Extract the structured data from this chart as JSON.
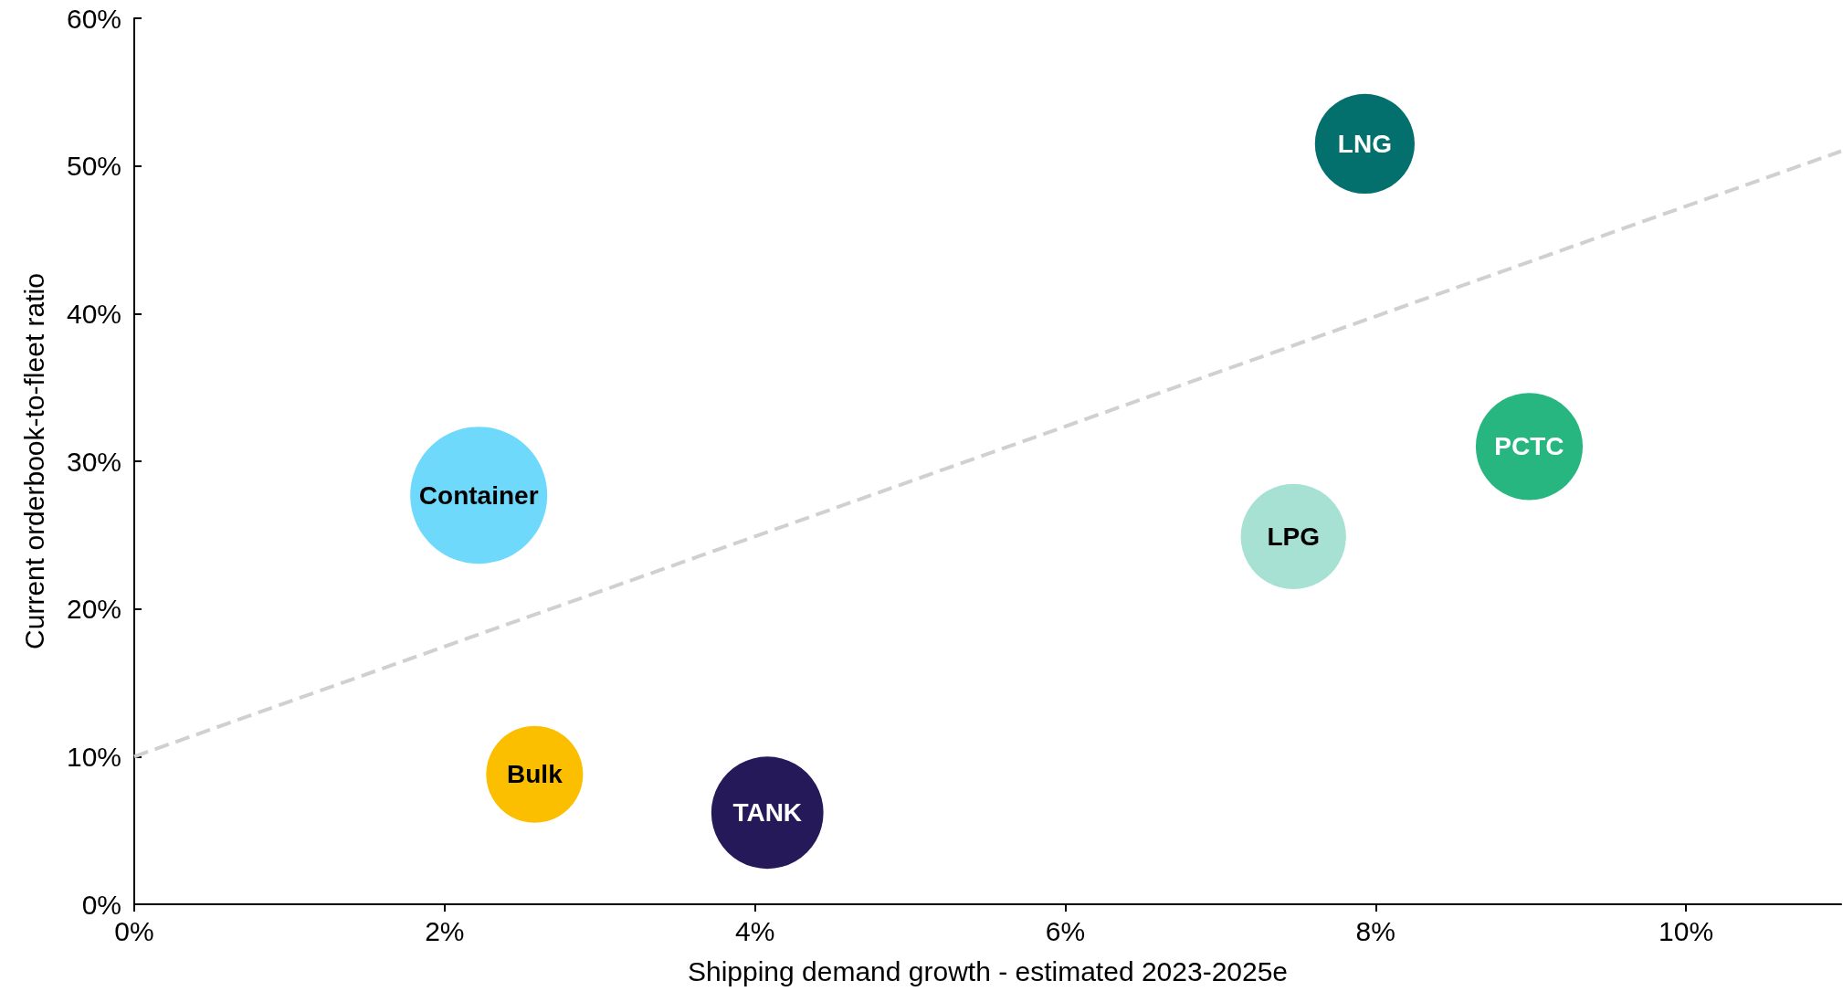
{
  "chart_data": {
    "type": "bubble",
    "xlabel": "Shipping demand growth - estimated 2023-2025e",
    "ylabel": "Current orderbook-to-fleet ratio",
    "xlim": [
      0,
      11
    ],
    "xticks": [
      {
        "value": 0,
        "label": "0%"
      },
      {
        "value": 2,
        "label": "2%"
      },
      {
        "value": 4,
        "label": "4%"
      },
      {
        "value": 6,
        "label": "6%"
      },
      {
        "value": 8,
        "label": "8%"
      },
      {
        "value": 10,
        "label": "10%"
      }
    ],
    "ylim": [
      0,
      60
    ],
    "yticks": [
      {
        "value": 0,
        "label": "0%"
      },
      {
        "value": 10,
        "label": "10%"
      },
      {
        "value": 20,
        "label": "20%"
      },
      {
        "value": 30,
        "label": "30%"
      },
      {
        "value": 40,
        "label": "40%"
      },
      {
        "value": 50,
        "label": "50%"
      },
      {
        "value": 60,
        "label": "60%"
      }
    ],
    "grid": false,
    "legend": false,
    "series": [
      {
        "type": "line",
        "x": [
          0,
          11
        ],
        "values": [
          10,
          51
        ],
        "color": "#d0d0d0",
        "line_style": "dashed",
        "marker": "none"
      },
      {
        "name": "Container",
        "x": [
          2.22
        ],
        "values": [
          27.7
        ],
        "sizes": [
          1
        ],
        "color": "#6fd9fb"
      },
      {
        "name": "Bulk",
        "x": [
          2.58
        ],
        "values": [
          8.8
        ],
        "sizes": [
          0.5
        ],
        "color": "#fcbf00"
      },
      {
        "name": "TANK",
        "x": [
          4.08
        ],
        "values": [
          6.2
        ],
        "sizes": [
          0.67
        ],
        "color": "#25195a"
      },
      {
        "name": "LPG",
        "x": [
          7.47
        ],
        "values": [
          24.9
        ],
        "sizes": [
          0.59
        ],
        "color": "#a6e1d4"
      },
      {
        "name": "LNG",
        "x": [
          7.93
        ],
        "values": [
          51.5
        ],
        "sizes": [
          0.53
        ],
        "color": "#03706d"
      },
      {
        "name": "PCTC",
        "x": [
          8.99
        ],
        "values": [
          31.0
        ],
        "sizes": [
          0.61
        ],
        "color": "#27b67f"
      }
    ]
  }
}
